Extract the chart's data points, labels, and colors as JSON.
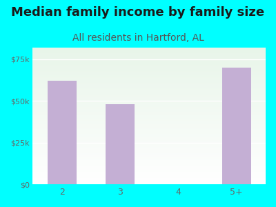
{
  "title": "Median family income by family size",
  "subtitle": "All residents in Hartford, AL",
  "categories": [
    "2",
    "3",
    "4",
    "5+"
  ],
  "values": [
    62000,
    48000,
    0,
    70000
  ],
  "bar_color": "#c4afd4",
  "background_color": "#00FFFF",
  "plot_bg_top": "#e8f5e9",
  "plot_bg_bottom": "#ffffff",
  "title_color": "#1a1a1a",
  "subtitle_color": "#555555",
  "tick_color": "#666666",
  "yticks": [
    0,
    25000,
    50000,
    75000
  ],
  "ytick_labels": [
    "$0",
    "$25k",
    "$50k",
    "$75k"
  ],
  "ylim": [
    0,
    82000
  ],
  "title_fontsize": 13,
  "subtitle_fontsize": 10
}
